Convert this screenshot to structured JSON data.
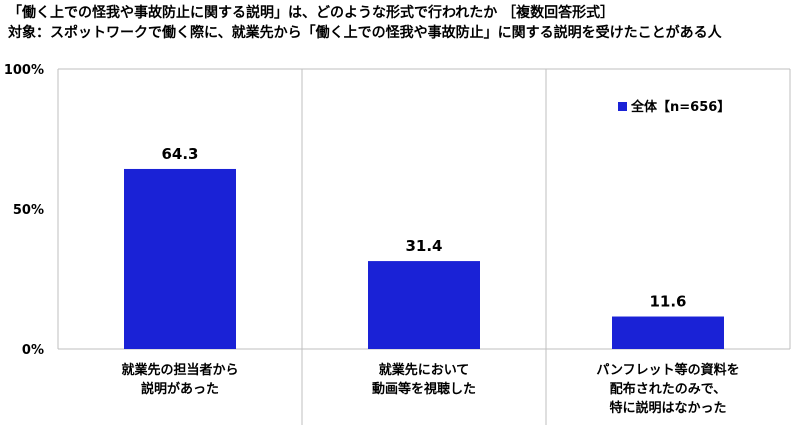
{
  "title": "「働く上での怪我や事故防止に関する説明」は、どのような形式で行われたか ［複数回答形式］",
  "subtitle": "対象：スポットワークで働く際に、就業先から「働く上での怪我や事故防止」に関する説明を受けたことがある人",
  "chart_data": {
    "type": "bar",
    "categories": [
      [
        "就業先の担当者から",
        "説明があった"
      ],
      [
        "就業先において",
        "動画等を視聴した"
      ],
      [
        "パンフレット等の資料を",
        "配布されたのみで、",
        "特に説明はなかった"
      ]
    ],
    "series": [
      {
        "name": "全体【n=656】",
        "values": [
          64.3,
          31.4,
          11.6
        ],
        "color": "#1a22d6"
      }
    ],
    "y_ticks": [
      "100%",
      "50%",
      "0%"
    ],
    "ylim": [
      0,
      100
    ],
    "legend_position": "top-right",
    "grid": false
  }
}
